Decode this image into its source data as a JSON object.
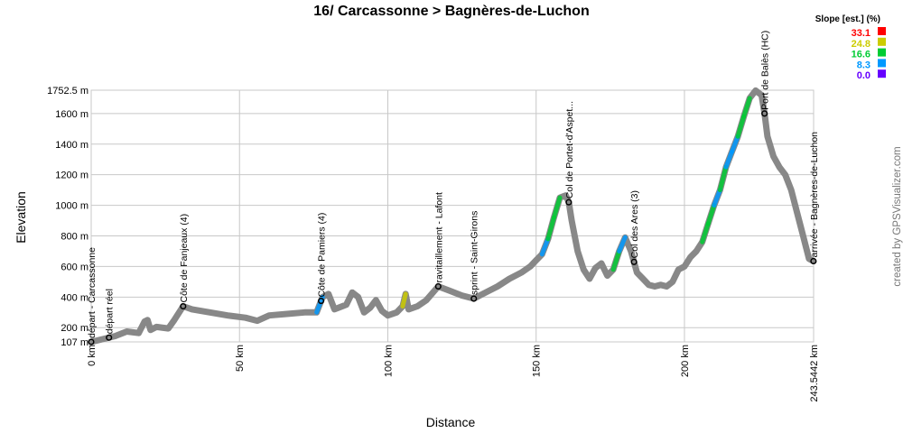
{
  "chart_data": {
    "type": "line",
    "title": "16/ Carcassonne > Bagnères-de-Luchon",
    "xlabel": "Distance",
    "ylabel": "Elevation",
    "xlim": [
      0,
      243.5442
    ],
    "ylim": [
      107,
      1752.5
    ],
    "x_ticks": [
      {
        "value": 0,
        "label": "0 km"
      },
      {
        "value": 50,
        "label": "50 km"
      },
      {
        "value": 100,
        "label": "100 km"
      },
      {
        "value": 150,
        "label": "150 km"
      },
      {
        "value": 200,
        "label": "200 km"
      },
      {
        "value": 243.5442,
        "label": "243.5442 km"
      }
    ],
    "y_ticks": [
      {
        "value": 107,
        "label": "107 m"
      },
      {
        "value": 200,
        "label": "200 m"
      },
      {
        "value": 400,
        "label": "400 m"
      },
      {
        "value": 600,
        "label": "600 m"
      },
      {
        "value": 800,
        "label": "800 m"
      },
      {
        "value": 1000,
        "label": "1000 m"
      },
      {
        "value": 1200,
        "label": "1200 m"
      },
      {
        "value": 1400,
        "label": "1400 m"
      },
      {
        "value": 1600,
        "label": "1600 m"
      },
      {
        "value": 1752.5,
        "label": "1752.5 m"
      }
    ],
    "grid": true,
    "x": [
      0,
      4,
      8,
      12,
      16,
      18,
      19,
      20,
      22,
      26,
      28,
      30,
      31,
      34,
      40,
      46,
      52,
      56,
      60,
      66,
      72,
      76,
      78,
      80,
      82,
      86,
      88,
      90,
      92,
      94,
      96,
      98,
      100,
      103,
      105,
      106,
      107,
      110,
      113,
      117,
      121,
      125,
      129,
      133,
      137,
      141,
      145,
      148,
      150,
      152,
      154,
      156,
      158,
      160,
      161,
      162,
      164,
      166,
      168,
      170,
      172,
      174,
      176,
      178,
      180,
      182,
      184,
      186,
      188,
      190,
      192,
      194,
      196,
      198,
      199,
      200,
      202,
      204,
      206,
      208,
      210,
      212,
      214,
      216,
      218,
      220,
      222,
      224,
      226,
      227,
      228,
      230,
      232,
      234,
      236,
      238,
      240,
      242,
      243.5
    ],
    "series": [
      {
        "values": [
          107,
          125,
          145,
          175,
          165,
          240,
          250,
          185,
          205,
          195,
          250,
          310,
          340,
          320,
          300,
          280,
          265,
          245,
          280,
          290,
          300,
          300,
          400,
          420,
          320,
          350,
          430,
          400,
          300,
          330,
          380,
          310,
          280,
          300,
          340,
          420,
          320,
          340,
          380,
          470,
          440,
          410,
          390,
          430,
          470,
          520,
          560,
          600,
          640,
          680,
          780,
          920,
          1050,
          1065,
          1020,
          900,
          700,
          580,
          520,
          590,
          620,
          540,
          580,
          700,
          790,
          700,
          560,
          520,
          480,
          470,
          480,
          470,
          500,
          580,
          590,
          600,
          660,
          700,
          760,
          880,
          1000,
          1100,
          1250,
          1350,
          1450,
          1580,
          1700,
          1750,
          1720,
          1600,
          1450,
          1320,
          1250,
          1200,
          1100,
          950,
          800,
          650,
          635
        ]
      }
    ],
    "waypoints": [
      {
        "x": 0,
        "label": "départ - Carcassonne"
      },
      {
        "x": 6,
        "label": "départ réel"
      },
      {
        "x": 31,
        "label": "Côte de Fanjeaux (4)"
      },
      {
        "x": 77.5,
        "label": "Côte de Pamiers (4)"
      },
      {
        "x": 117,
        "label": "ravitaillement - Lafont"
      },
      {
        "x": 129,
        "label": "sprint - Saint-Girons"
      },
      {
        "x": 161,
        "label": "Col de Portet-d'Aspet..."
      },
      {
        "x": 183,
        "label": "Col des Ares (3)"
      },
      {
        "x": 227,
        "label": "Port de Balès (HC)"
      },
      {
        "x": 243.5,
        "label": "arrivée - Bagnères-de-Luchon"
      }
    ],
    "legend": {
      "title": "Slope [est.] (%)",
      "placement": "top-right",
      "entries": [
        {
          "label": "33.1",
          "color": "#ff0000"
        },
        {
          "label": "24.8",
          "color": "#cccc00"
        },
        {
          "label": "16.6",
          "color": "#00cc33"
        },
        {
          "label": "8.3",
          "color": "#0099ff"
        },
        {
          "label": "0.0",
          "color": "#6600ff"
        }
      ]
    }
  },
  "credit": "created by GPSVisualizer.com",
  "colors": {
    "trace": "#888888",
    "grid": "#c8c8c8",
    "marker": "#000000"
  }
}
